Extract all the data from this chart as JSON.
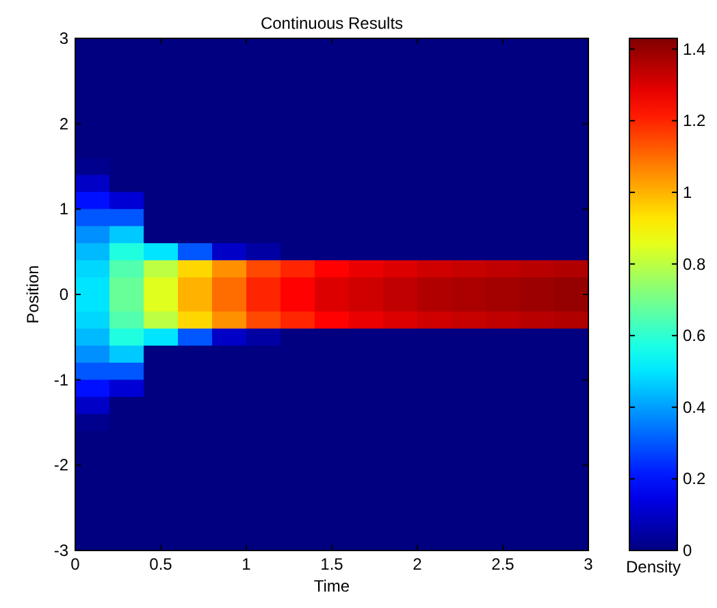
{
  "chart_data": {
    "type": "heatmap",
    "title": "Continuous Results",
    "xlabel": "Time",
    "ylabel": "Position",
    "clabel": "Density",
    "x": [
      0.1,
      0.3,
      0.5,
      0.7,
      0.9,
      1.1,
      1.3,
      1.5,
      1.7,
      1.9,
      2.1,
      2.3,
      2.5,
      2.7,
      2.9
    ],
    "y": [
      2.9,
      2.7,
      2.5,
      2.3,
      2.1,
      1.9,
      1.7,
      1.5,
      1.3,
      1.1,
      0.9,
      0.7,
      0.5,
      0.3,
      0.1,
      -0.1,
      -0.3,
      -0.5,
      -0.7,
      -0.9,
      -1.1,
      -1.3,
      -1.5,
      -1.7,
      -1.9,
      -2.1,
      -2.3,
      -2.5,
      -2.7,
      -2.9
    ],
    "xlim": [
      0,
      3
    ],
    "xticks": [
      0,
      0.5,
      1,
      1.5,
      2,
      2.5,
      3
    ],
    "ylim": [
      -3,
      3
    ],
    "yticks": [
      -3,
      -2,
      -1,
      0,
      1,
      2,
      3
    ],
    "clim": [
      0,
      1.43
    ],
    "cticks": [
      0,
      0.2,
      0.4,
      0.6,
      0.8,
      1,
      1.2,
      1.4
    ],
    "cells": [
      [
        0,
        0,
        0,
        0,
        0,
        0,
        0,
        0,
        0,
        0,
        0,
        0,
        0,
        0,
        0
      ],
      [
        0,
        0,
        0,
        0,
        0,
        0,
        0,
        0,
        0,
        0,
        0,
        0,
        0,
        0,
        0
      ],
      [
        0,
        0,
        0,
        0,
        0,
        0,
        0,
        0,
        0,
        0,
        0,
        0,
        0,
        0,
        0
      ],
      [
        0,
        0,
        0,
        0,
        0,
        0,
        0,
        0,
        0,
        0,
        0,
        0,
        0,
        0,
        0
      ],
      [
        0,
        0,
        0,
        0,
        0,
        0,
        0,
        0,
        0,
        0,
        0,
        0,
        0,
        0,
        0
      ],
      [
        0,
        0,
        0,
        0,
        0,
        0,
        0,
        0,
        0,
        0,
        0,
        0,
        0,
        0,
        0
      ],
      [
        0,
        0,
        0,
        0,
        0,
        0,
        0,
        0,
        0,
        0,
        0,
        0,
        0,
        0,
        0
      ],
      [
        0.02,
        0,
        0,
        0,
        0,
        0,
        0,
        0,
        0,
        0,
        0,
        0,
        0,
        0,
        0
      ],
      [
        0.1,
        0,
        0,
        0,
        0,
        0,
        0,
        0,
        0,
        0,
        0,
        0,
        0,
        0,
        0
      ],
      [
        0.2,
        0.12,
        0,
        0,
        0,
        0,
        0,
        0,
        0,
        0,
        0,
        0,
        0,
        0,
        0
      ],
      [
        0.3,
        0.3,
        0,
        0,
        0,
        0,
        0,
        0,
        0,
        0,
        0,
        0,
        0,
        0,
        0
      ],
      [
        0.38,
        0.46,
        0,
        0,
        0,
        0,
        0,
        0,
        0,
        0,
        0,
        0,
        0,
        0,
        0
      ],
      [
        0.44,
        0.58,
        0.5,
        0.3,
        0.1,
        0.05,
        0,
        0,
        0,
        0,
        0,
        0,
        0,
        0,
        0
      ],
      [
        0.48,
        0.65,
        0.8,
        0.95,
        1.05,
        1.15,
        1.2,
        1.25,
        1.28,
        1.3,
        1.32,
        1.33,
        1.34,
        1.35,
        1.36
      ],
      [
        0.5,
        0.68,
        0.85,
        1,
        1.1,
        1.2,
        1.25,
        1.3,
        1.32,
        1.34,
        1.36,
        1.37,
        1.38,
        1.39,
        1.4
      ],
      [
        0.5,
        0.68,
        0.85,
        1,
        1.1,
        1.2,
        1.25,
        1.3,
        1.32,
        1.34,
        1.36,
        1.37,
        1.38,
        1.39,
        1.4
      ],
      [
        0.48,
        0.65,
        0.8,
        0.95,
        1.05,
        1.15,
        1.2,
        1.25,
        1.28,
        1.3,
        1.32,
        1.33,
        1.34,
        1.35,
        1.36
      ],
      [
        0.44,
        0.58,
        0.5,
        0.3,
        0.1,
        0.05,
        0,
        0,
        0,
        0,
        0,
        0,
        0,
        0,
        0
      ],
      [
        0.38,
        0.46,
        0,
        0,
        0,
        0,
        0,
        0,
        0,
        0,
        0,
        0,
        0,
        0,
        0
      ],
      [
        0.3,
        0.3,
        0,
        0,
        0,
        0,
        0,
        0,
        0,
        0,
        0,
        0,
        0,
        0,
        0
      ],
      [
        0.2,
        0.12,
        0,
        0,
        0,
        0,
        0,
        0,
        0,
        0,
        0,
        0,
        0,
        0,
        0
      ],
      [
        0.1,
        0,
        0,
        0,
        0,
        0,
        0,
        0,
        0,
        0,
        0,
        0,
        0,
        0,
        0
      ],
      [
        0.02,
        0,
        0,
        0,
        0,
        0,
        0,
        0,
        0,
        0,
        0,
        0,
        0,
        0,
        0
      ],
      [
        0,
        0,
        0,
        0,
        0,
        0,
        0,
        0,
        0,
        0,
        0,
        0,
        0,
        0,
        0
      ],
      [
        0,
        0,
        0,
        0,
        0,
        0,
        0,
        0,
        0,
        0,
        0,
        0,
        0,
        0,
        0
      ],
      [
        0,
        0,
        0,
        0,
        0,
        0,
        0,
        0,
        0,
        0,
        0,
        0,
        0,
        0,
        0
      ],
      [
        0,
        0,
        0,
        0,
        0,
        0,
        0,
        0,
        0,
        0,
        0,
        0,
        0,
        0,
        0
      ],
      [
        0,
        0,
        0,
        0,
        0,
        0,
        0,
        0,
        0,
        0,
        0,
        0,
        0,
        0,
        0
      ],
      [
        0,
        0,
        0,
        0,
        0,
        0,
        0,
        0,
        0,
        0,
        0,
        0,
        0,
        0,
        0
      ],
      [
        0,
        0,
        0,
        0,
        0,
        0,
        0,
        0,
        0,
        0,
        0,
        0,
        0,
        0,
        0
      ]
    ]
  }
}
